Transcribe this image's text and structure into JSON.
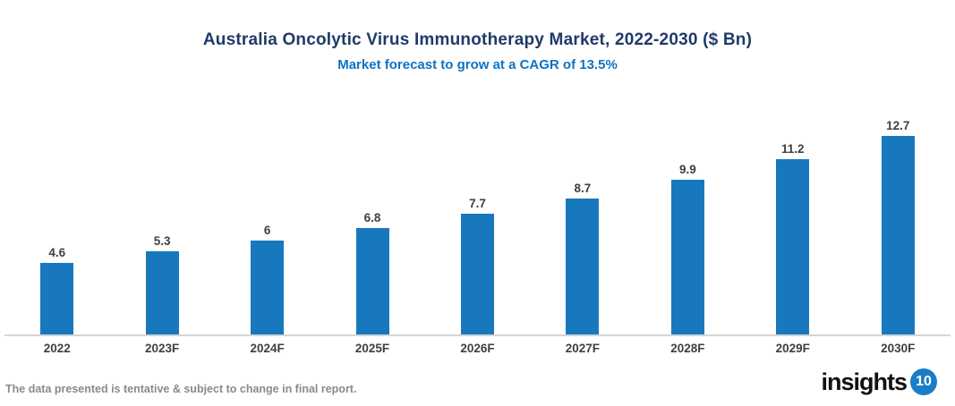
{
  "header": {
    "title": "Australia Oncolytic Virus Immunotherapy Market, 2022-2030 ($ Bn)",
    "subtitle": "Market forecast to grow at a CAGR of 13.5%"
  },
  "chart_data": {
    "type": "bar",
    "title": "Australia Oncolytic Virus Immunotherapy Market, 2022-2030 ($ Bn)",
    "subtitle": "Market forecast to grow at a CAGR of 13.5%",
    "categories": [
      "2022",
      "2023F",
      "2024F",
      "2025F",
      "2026F",
      "2027F",
      "2028F",
      "2029F",
      "2030F"
    ],
    "values": [
      4.6,
      5.3,
      6,
      6.8,
      7.7,
      8.7,
      9.9,
      11.2,
      12.7
    ],
    "data_labels": [
      "4.6",
      "5.3",
      "6",
      "6.8",
      "7.7",
      "8.7",
      "9.9",
      "11.2",
      "12.7"
    ],
    "xlabel": "",
    "ylabel": "",
    "ylim": [
      0,
      14
    ],
    "grid": false,
    "legend": false,
    "bar_color": "#1878be"
  },
  "footer": {
    "disclaimer": "The data presented is tentative & subject to change in final report.",
    "logo_text": "insights",
    "logo_badge": "10"
  },
  "colors": {
    "title": "#203a69",
    "subtitle": "#0d73c4",
    "bar": "#1878be",
    "label": "#3f3f3f",
    "axis_line": "#d5d5d5",
    "footer_text": "#8a8a8a",
    "logo_badge_bg": "#1b7dc6"
  }
}
